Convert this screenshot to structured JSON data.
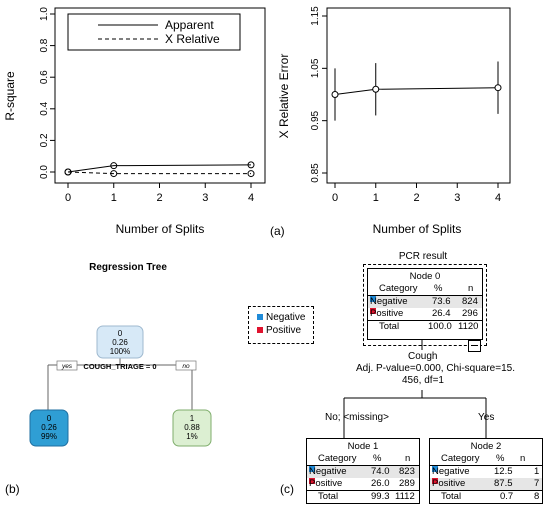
{
  "panel_a_left": {
    "ylabel": "R-square",
    "xlabel": "Number of Splits",
    "xticks": [
      "0",
      "1",
      "2",
      "3",
      "4"
    ],
    "yticks": [
      "0.0",
      "0.2",
      "0.4",
      "0.6",
      "0.8",
      "1.0"
    ],
    "legend": [
      "Apparent",
      "X Relative"
    ]
  },
  "panel_a_right": {
    "ylabel": "X Relative Error",
    "xlabel": "Number of Splits",
    "xticks": [
      "0",
      "1",
      "2",
      "3",
      "4"
    ],
    "yticks": [
      "0.85",
      "0.95",
      "1.05",
      "1.15"
    ]
  },
  "chart_data": [
    {
      "type": "line",
      "ylabel": "R-square",
      "xlabel": "Number of Splits",
      "xlim": [
        0,
        4
      ],
      "ylim": [
        0,
        1
      ],
      "series": [
        {
          "name": "Apparent",
          "x": [
            0,
            1,
            4
          ],
          "y": [
            0.0,
            0.04,
            0.045
          ]
        },
        {
          "name": "X Relative",
          "x": [
            0,
            1,
            4
          ],
          "y": [
            0.0,
            -0.01,
            -0.01
          ]
        }
      ],
      "legend": "top"
    },
    {
      "type": "line",
      "ylabel": "X Relative Error",
      "xlabel": "Number of Splits",
      "xlim": [
        0,
        4
      ],
      "ylim": [
        0.85,
        1.15
      ],
      "series": [
        {
          "x": [
            0,
            1,
            4
          ],
          "y": [
            1.0,
            1.01,
            1.013
          ],
          "err": [
            0.05,
            0.05,
            0.05
          ]
        }
      ]
    }
  ],
  "caption_a": "(a)",
  "caption_b": "(b)",
  "caption_c": "(c)",
  "regtree": {
    "title": "Regression Tree",
    "root": {
      "line1": "0",
      "line2": "0.26",
      "line3": "100%"
    },
    "split": "COUGH_TRIAGE = 0",
    "yes": "yes",
    "no": "no",
    "left": {
      "line1": "0",
      "line2": "0.26",
      "line3": "99%"
    },
    "right": {
      "line1": "1",
      "line2": "0.88",
      "line3": "1%"
    }
  },
  "legend_box": {
    "neg": "Negative",
    "pos": "Positive"
  },
  "colors": {
    "neg": "#1f8bd8",
    "pos": "#e0132e",
    "root": "#d7e9f7",
    "left": "#2f9ed4",
    "right": "#dcefd2"
  },
  "pcr": {
    "title": "PCR result",
    "node0": {
      "name": "Node 0",
      "hdr": [
        "Category",
        "%",
        "n"
      ],
      "rows": [
        [
          "Negative",
          "73.6",
          "824"
        ],
        [
          "Positive",
          "26.4",
          "296"
        ]
      ],
      "total": [
        "Total",
        "100.0",
        "1120"
      ]
    },
    "split_var": "Cough",
    "split_stat1": "Adj. P-value=0.000, Chi-square=15.",
    "split_stat2": "456, df=1",
    "branch_left": "No;  <missing>",
    "branch_right": "Yes",
    "node1": {
      "name": "Node 1",
      "hdr": [
        "Category",
        "%",
        "n"
      ],
      "rows": [
        [
          "Negative",
          "74.0",
          "823"
        ],
        [
          "Positive",
          "26.0",
          "289"
        ]
      ],
      "total": [
        "Total",
        "99.3",
        "1112"
      ]
    },
    "node2": {
      "name": "Node 2",
      "hdr": [
        "Category",
        "%",
        "n"
      ],
      "rows": [
        [
          "Negative",
          "12.5",
          "1"
        ],
        [
          "Positive",
          "87.5",
          "7"
        ]
      ],
      "total": [
        "Total",
        "0.7",
        "8"
      ]
    }
  }
}
